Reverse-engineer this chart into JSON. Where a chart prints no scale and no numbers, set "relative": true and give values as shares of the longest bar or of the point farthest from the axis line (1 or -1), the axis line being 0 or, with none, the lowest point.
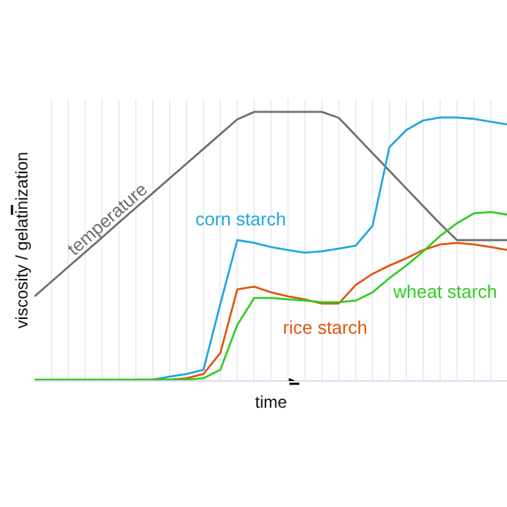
{
  "chart_data": {
    "type": "line",
    "relative": true,
    "xlabel": "time",
    "ylabel": "viscosity / gelatinization",
    "grid": "x",
    "marker": "none",
    "line_style": "solid",
    "categories": [
      null,
      null,
      null,
      null,
      null,
      null,
      null,
      null,
      null,
      null,
      null,
      null,
      null,
      null,
      null,
      null,
      null,
      null,
      null,
      null,
      null,
      null,
      null,
      null,
      null,
      null,
      null,
      null,
      null
    ],
    "series": [
      {
        "name": "temperature",
        "color": "#6e6e6e",
        "values": [
          0.311,
          0.366,
          0.421,
          0.476,
          0.531,
          0.587,
          0.642,
          0.697,
          0.752,
          0.807,
          0.862,
          0.917,
          0.972,
          1,
          1,
          1,
          1,
          1,
          0.978,
          0.912,
          0.846,
          0.78,
          0.714,
          0.648,
          0.582,
          0.521,
          0.521,
          0.521,
          0.521
        ]
      },
      {
        "name": "corn starch",
        "color": "#1fa7e0",
        "values": [
          null,
          null,
          null,
          null,
          null,
          null,
          0,
          0,
          0.011,
          0.021,
          0.037,
          0.284,
          0.521,
          0.511,
          0.495,
          0.484,
          0.474,
          0.479,
          0.489,
          0.5,
          0.574,
          0.868,
          0.932,
          0.968,
          0.979,
          0.979,
          0.974,
          0.963,
          0.953
        ]
      },
      {
        "name": "rice starch",
        "color": "#e0560f",
        "values": [
          null,
          null,
          null,
          null,
          null,
          null,
          null,
          0,
          0,
          0.005,
          0.021,
          0.1,
          0.337,
          0.347,
          0.326,
          0.311,
          0.3,
          0.284,
          0.284,
          0.353,
          0.395,
          0.426,
          0.453,
          0.484,
          0.505,
          0.511,
          0.505,
          0.495,
          0.484
        ]
      },
      {
        "name": "wheat starch",
        "color": "#33cc22",
        "values": [
          0,
          0,
          0,
          0,
          0,
          0,
          0,
          0,
          0,
          0,
          0.005,
          0.037,
          0.205,
          0.305,
          0.305,
          0.3,
          0.295,
          0.289,
          0.289,
          0.295,
          0.326,
          0.379,
          0.426,
          0.479,
          0.537,
          0.584,
          0.621,
          0.626,
          0.616
        ]
      }
    ]
  }
}
